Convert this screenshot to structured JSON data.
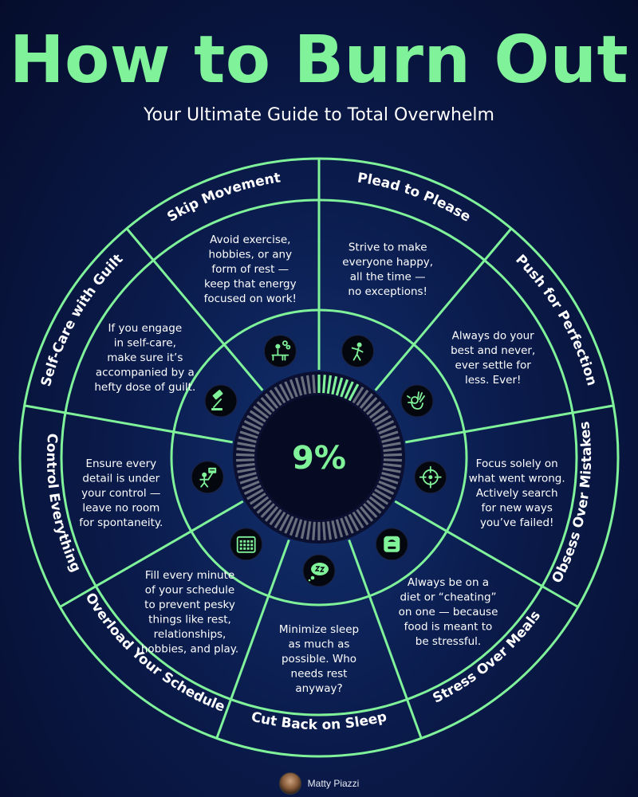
{
  "header": {
    "title": "How to Burn Out",
    "subtitle": "Your Ultimate Guide to Total Overwhelm"
  },
  "center": {
    "value": "9%",
    "progress": 0.09
  },
  "colors": {
    "accent": "#7ff29a",
    "background": "#0a1a4a",
    "circle_dark": "#0b1030"
  },
  "segments": [
    {
      "title": "Plead to Please",
      "icon": "figure-icon",
      "desc": [
        "Strive to make",
        "everyone happy,",
        "all the time —",
        "no exceptions!"
      ]
    },
    {
      "title": "Push for Perfection",
      "icon": "ok-hand-icon",
      "desc": [
        "Always do your",
        "best and never,",
        "ever settle for",
        "less. Ever!"
      ]
    },
    {
      "title": "Obsess Over Mistakes",
      "icon": "target-icon",
      "desc": [
        "Focus solely on",
        "what went wrong.",
        "Actively search",
        "for new ways",
        "you’ve failed!"
      ]
    },
    {
      "title": "Stress Over Meals",
      "icon": "scale-icon",
      "desc": [
        "Always be on a",
        "diet or “cheating”",
        "on one — because",
        "food is meant to",
        "be stressful."
      ]
    },
    {
      "title": "Cut Back on Sleep",
      "icon": "thought-bubble-icon",
      "desc": [
        "Minimize sleep",
        "as much as",
        "possible. Who",
        "needs rest",
        "anyway?"
      ]
    },
    {
      "title": "Overload Your Schedule",
      "icon": "calendar-icon",
      "desc": [
        "Fill every minute",
        "of your schedule",
        "to prevent pesky",
        "things like rest,",
        "relationships,",
        "hobbies, and play."
      ]
    },
    {
      "title": "Control Everything",
      "icon": "puppet-icon",
      "desc": [
        "Ensure every",
        "detail is under",
        "your control —",
        "leave no room",
        "for spontaneity."
      ]
    },
    {
      "title": "Self-Care with Guilt",
      "icon": "gavel-icon",
      "desc": [
        "If you engage",
        "in self-care,",
        "make sure it’s",
        "accompanied by a",
        "hefty dose of guilt."
      ]
    },
    {
      "title": "Skip Movement",
      "icon": "desk-worker-icon",
      "desc": [
        "Avoid exercise,",
        "hobbies, or any",
        "form of rest —",
        "keep that energy",
        "focused on work!"
      ]
    }
  ],
  "footer": {
    "author": "Matty Piazzi"
  }
}
